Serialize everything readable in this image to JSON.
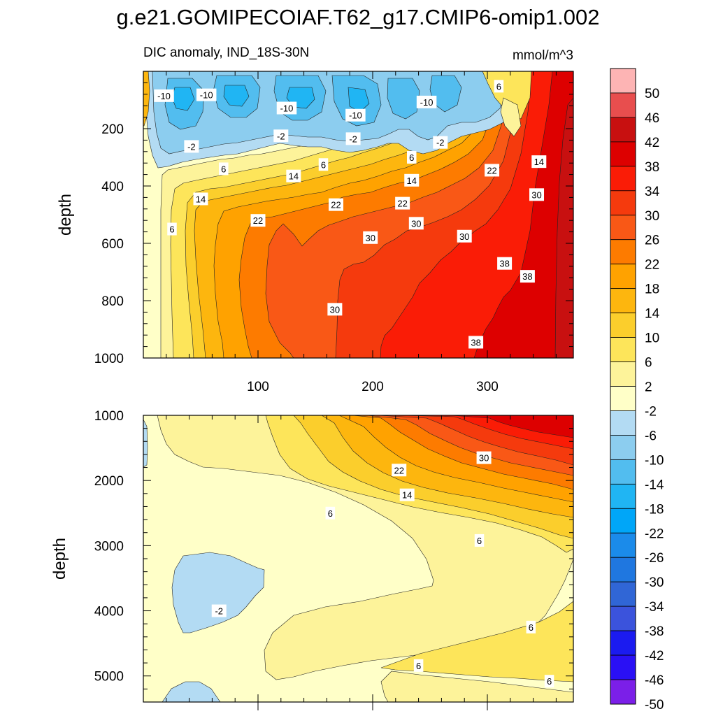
{
  "title": "g.e21.GOMIPECOIAF.T62_g17.CMIP6-omip1.002",
  "chart_data": {
    "type": "heatmap",
    "subtitle": "DIC anomaly, IND_18S-30N",
    "units": "mmol/m^3",
    "xlim": [
      0,
      375
    ],
    "x_ticks": [
      100,
      200,
      300
    ],
    "levels_colorbar": [
      50,
      46,
      42,
      38,
      34,
      30,
      26,
      22,
      18,
      14,
      10,
      6,
      2,
      -2,
      -6,
      -10,
      -14,
      -18,
      -22,
      -26,
      -30,
      -34,
      -38,
      -42,
      -46,
      -50
    ],
    "colors": {
      "l50": "#fdb4b4",
      "l46": "#e84e4e",
      "l42": "#c81010",
      "l38": "#dd0000",
      "l34": "#fa1c06",
      "l30": "#f53a0d",
      "l26": "#f95816",
      "l22": "#fd7b00",
      "l18": "#ffa200",
      "l14": "#fdb60e",
      "l10": "#fbce2c",
      "l6": "#fde55a",
      "l2": "#fdf39a",
      "lm2": "#ffffc8",
      "lm6": "#b3dbf3",
      "lm10": "#8ccdef",
      "lm14": "#52bdef",
      "lm18": "#20b5f3",
      "lm22": "#00a6f8",
      "lm26": "#1b8bea",
      "lm30": "#1f77e0",
      "lm34": "#3066d6",
      "lm38": "#3b53dc",
      "lm42": "#1b1bf0",
      "lm46": "#2a10f5",
      "lm50": "#7b1fe8"
    },
    "panels": [
      {
        "name": "upper",
        "ylabel": "depth",
        "ylim": [
          0,
          1000
        ],
        "y_ticks": [
          200,
          400,
          600,
          800,
          1000
        ],
        "contour_labels": [
          {
            "text": "-10",
            "x": 18,
            "y": 85
          },
          {
            "text": "-10",
            "x": 55,
            "y": 82
          },
          {
            "text": "-10",
            "x": 125,
            "y": 128
          },
          {
            "text": "-10",
            "x": 247,
            "y": 107
          },
          {
            "text": "-10",
            "x": 185,
            "y": 153
          },
          {
            "text": "6",
            "x": 310,
            "y": 52
          },
          {
            "text": "-2",
            "x": 42,
            "y": 262
          },
          {
            "text": "-2",
            "x": 120,
            "y": 225
          },
          {
            "text": "-2",
            "x": 183,
            "y": 235
          },
          {
            "text": "-2",
            "x": 259,
            "y": 248
          },
          {
            "text": "6",
            "x": 70,
            "y": 340
          },
          {
            "text": "6",
            "x": 157,
            "y": 325
          },
          {
            "text": "6",
            "x": 234,
            "y": 300
          },
          {
            "text": "14",
            "x": 131,
            "y": 365
          },
          {
            "text": "14",
            "x": 234,
            "y": 380
          },
          {
            "text": "14",
            "x": 345,
            "y": 315
          },
          {
            "text": "22",
            "x": 304,
            "y": 345
          },
          {
            "text": "14",
            "x": 50,
            "y": 445
          },
          {
            "text": "22",
            "x": 168,
            "y": 465
          },
          {
            "text": "22",
            "x": 226,
            "y": 460
          },
          {
            "text": "22",
            "x": 100,
            "y": 520
          },
          {
            "text": "30",
            "x": 343,
            "y": 430
          },
          {
            "text": "6",
            "x": 25,
            "y": 550
          },
          {
            "text": "30",
            "x": 238,
            "y": 530
          },
          {
            "text": "30",
            "x": 198,
            "y": 580
          },
          {
            "text": "30",
            "x": 280,
            "y": 575
          },
          {
            "text": "38",
            "x": 315,
            "y": 670
          },
          {
            "text": "38",
            "x": 335,
            "y": 715
          },
          {
            "text": "30",
            "x": 167,
            "y": 830
          },
          {
            "text": "38",
            "x": 290,
            "y": 945
          }
        ]
      },
      {
        "name": "lower",
        "ylabel": "depth",
        "ylim": [
          1000,
          5400
        ],
        "y_ticks": [
          1000,
          2000,
          3000,
          4000,
          5000
        ],
        "contour_labels": [
          {
            "text": "30",
            "x": 297,
            "y": 1650
          },
          {
            "text": "22",
            "x": 223,
            "y": 1840
          },
          {
            "text": "14",
            "x": 230,
            "y": 2220
          },
          {
            "text": "6",
            "x": 163,
            "y": 2500
          },
          {
            "text": "6",
            "x": 293,
            "y": 2920
          },
          {
            "text": "-2",
            "x": 66,
            "y": 4000
          },
          {
            "text": "6",
            "x": 338,
            "y": 4250
          },
          {
            "text": "6",
            "x": 240,
            "y": 4840
          },
          {
            "text": "6",
            "x": 354,
            "y": 5080
          }
        ]
      }
    ]
  }
}
